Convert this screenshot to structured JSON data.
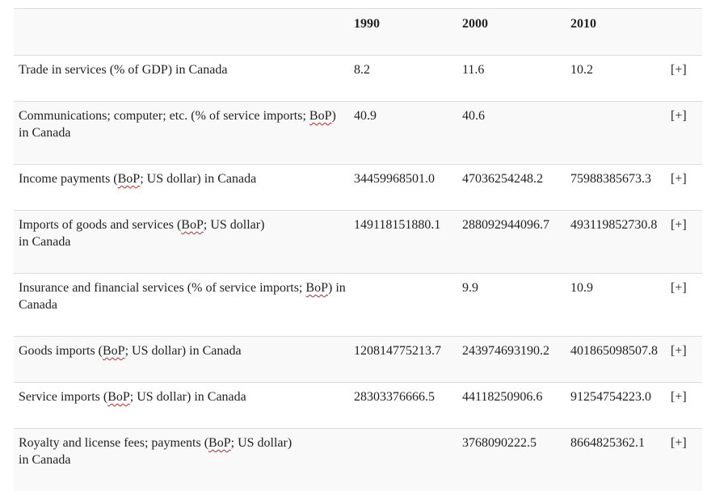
{
  "table": {
    "headers": [
      "",
      "1990",
      "2000",
      "2010",
      ""
    ],
    "rows": [
      {
        "label_parts": [
          "Trade in services (% of GDP) in Canada"
        ],
        "v1990": "8.2",
        "v2000": "11.6",
        "v2010": "10.2",
        "more": "[+]"
      },
      {
        "label_parts": [
          "Communications; computer; etc. (% of service imports; ",
          "BoP",
          ") in Canada"
        ],
        "v1990": "40.9",
        "v2000": "40.6",
        "v2010": "",
        "more": "[+]"
      },
      {
        "label_parts": [
          "Income payments (",
          "BoP",
          "; US dollar) in Canada"
        ],
        "v1990": "34459968501.0",
        "v2000": "47036254248.2",
        "v2010": "75988385673.3",
        "more": "[+]"
      },
      {
        "label_parts": [
          "Imports of goods and services (",
          "BoP",
          "; US dollar) in Canada"
        ],
        "v1990": "149118151880.1",
        "v2000": "288092944096.7",
        "v2010": "493119852730.8",
        "more": "[+]"
      },
      {
        "label_parts": [
          "Insurance and financial services (% of service imports; ",
          "BoP",
          ") in Canada"
        ],
        "v1990": "",
        "v2000": "9.9",
        "v2010": "10.9",
        "more": "[+]"
      },
      {
        "label_parts": [
          "Goods imports (",
          "BoP",
          "; US dollar) in Canada"
        ],
        "v1990": "120814775213.7",
        "v2000": "243974693190.2",
        "v2010": "401865098507.8",
        "more": "[+]"
      },
      {
        "label_parts": [
          "Service imports (",
          "BoP",
          "; US dollar) in Canada"
        ],
        "v1990": "28303376666.5",
        "v2000": "44118250906.6",
        "v2010": "91254754223.0",
        "more": "[+]"
      },
      {
        "label_parts": [
          "Royalty and license fees; payments (",
          "BoP",
          "; US dollar) in Canada"
        ],
        "v1990": "",
        "v2000": "3768090222.5",
        "v2010": "8664825362.1",
        "more": "[+]"
      }
    ]
  }
}
